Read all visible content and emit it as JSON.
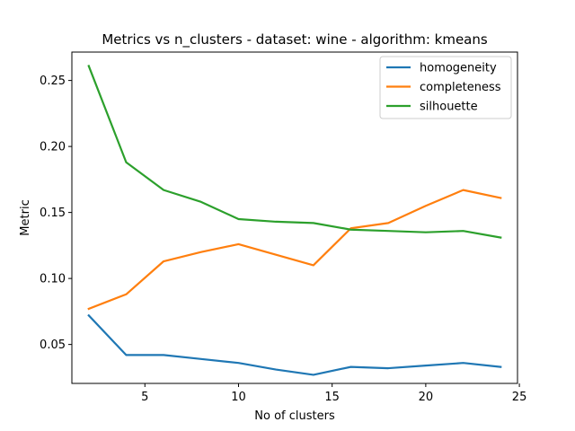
{
  "chart_data": {
    "type": "line",
    "title": "Metrics vs n_clusters - dataset: wine - algorithm: kmeans",
    "xlabel": "No of clusters",
    "ylabel": "Metric",
    "xlim": [
      1.1,
      24.9
    ],
    "ylim": [
      0.0205,
      0.2715
    ],
    "xticks": [
      5,
      10,
      15,
      20,
      25
    ],
    "yticks": [
      0.05,
      0.1,
      0.15,
      0.2,
      0.25
    ],
    "ytick_labels": [
      "0.05",
      "0.10",
      "0.15",
      "0.20",
      "0.25"
    ],
    "grid": false,
    "legend_position": "top-right",
    "x": [
      2,
      4,
      6,
      8,
      10,
      12,
      14,
      16,
      18,
      20,
      22,
      24
    ],
    "series": [
      {
        "name": "homogeneity",
        "color": "#1f77b4",
        "values": [
          0.072,
          0.042,
          0.042,
          0.039,
          0.036,
          0.031,
          0.027,
          0.033,
          0.032,
          0.034,
          0.036,
          0.033
        ]
      },
      {
        "name": "completeness",
        "color": "#ff7f0e",
        "values": [
          0.077,
          0.088,
          0.113,
          0.12,
          0.126,
          0.118,
          0.11,
          0.138,
          0.142,
          0.155,
          0.167,
          0.161
        ]
      },
      {
        "name": "silhouette",
        "color": "#2ca02c",
        "values": [
          0.261,
          0.188,
          0.167,
          0.158,
          0.145,
          0.143,
          0.142,
          0.137,
          0.136,
          0.135,
          0.136,
          0.131
        ]
      }
    ]
  }
}
